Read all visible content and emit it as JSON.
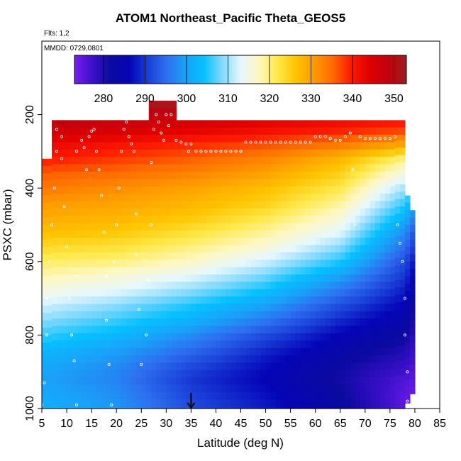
{
  "chart_data": {
    "type": "heatmap",
    "title": "ATOM1 Northeast_Pacific Theta_GEOS5",
    "flights_label": "Flts: 1,2",
    "dates_label": "MMDD: 0729,0801",
    "xlabel": "Latitude (deg N)",
    "ylabel": "PSXC (mbar)",
    "xlim": [
      5,
      85
    ],
    "ylim": [
      1000,
      0
    ],
    "x_ticks": [
      5,
      10,
      15,
      20,
      25,
      30,
      35,
      40,
      45,
      50,
      55,
      60,
      65,
      70,
      75,
      80,
      85
    ],
    "y_ticks": [
      200,
      400,
      600,
      800,
      1000
    ],
    "colorbar": {
      "range": [
        273,
        353
      ],
      "ticks": [
        280,
        290,
        300,
        310,
        320,
        330,
        340,
        350
      ],
      "colors": [
        "#7a1ef0",
        "#3a10c8",
        "#0a0aa0",
        "#0505b8",
        "#1a40d8",
        "#2d6ff0",
        "#1aa0f8",
        "#05c0ff",
        "#80d8ff",
        "#e6f7ff",
        "#fff7c0",
        "#ffe94a",
        "#ffc400",
        "#ff9a00",
        "#ff6a00",
        "#ff1a00",
        "#e00000",
        "#c00010",
        "#9c1e1e"
      ]
    },
    "arrow_latitude": 35,
    "curtain_columns": [
      {
        "lat_from": 5.0,
        "lat_to": 7.0,
        "p_top": 320,
        "p_bottom": 1000
      },
      {
        "lat_from": 7.0,
        "lat_to": 78.0,
        "p_top": 215,
        "p_bottom": 1000
      },
      {
        "lat_from": 26.5,
        "lat_to": 32.0,
        "p_top": 162,
        "p_bottom": 215
      },
      {
        "lat_from": 76.0,
        "lat_to": 78.0,
        "p_top": 270,
        "p_bottom": 1000
      },
      {
        "lat_from": 78.0,
        "lat_to": 79.0,
        "p_top": 420,
        "p_bottom": 985
      },
      {
        "lat_from": 79.0,
        "lat_to": 80.0,
        "p_top": 460,
        "p_bottom": 960
      }
    ],
    "theta_profile": {
      "pressure": [
        170,
        200,
        240,
        280,
        320,
        360,
        400,
        440,
        480,
        520,
        560,
        600,
        640,
        680,
        720,
        760,
        800,
        840,
        880,
        920,
        960,
        1000
      ],
      "lat_nodes": [
        5,
        20,
        35,
        50,
        65,
        78,
        80
      ],
      "theta": [
        [
          352,
          352,
          352,
          352,
          352,
          352,
          352
        ],
        [
          350,
          349,
          348,
          345,
          344,
          342,
          341
        ],
        [
          347,
          346,
          344,
          342,
          340,
          338,
          336
        ],
        [
          343,
          341,
          339,
          337,
          334,
          330,
          328
        ],
        [
          340,
          338,
          336,
          333,
          328,
          320,
          318
        ],
        [
          336,
          335,
          333,
          330,
          325,
          315,
          312
        ],
        [
          334,
          332,
          330,
          327,
          322,
          310,
          305
        ],
        [
          331,
          330,
          328,
          325,
          319,
          306,
          300
        ],
        [
          329,
          328,
          326,
          322,
          316,
          302,
          296
        ],
        [
          327,
          326,
          323,
          319,
          313,
          298,
          292
        ],
        [
          324,
          323,
          320,
          316,
          309,
          295,
          290
        ],
        [
          321,
          320,
          317,
          312,
          305,
          292,
          287
        ],
        [
          318,
          316,
          313,
          308,
          300,
          290,
          285
        ],
        [
          315,
          313,
          309,
          304,
          296,
          288,
          283
        ],
        [
          312,
          309,
          305,
          300,
          292,
          286,
          281
        ],
        [
          309,
          306,
          302,
          296,
          289,
          284,
          280
        ],
        [
          306,
          303,
          298,
          292,
          286,
          282,
          279
        ],
        [
          303,
          300,
          295,
          289,
          284,
          280,
          277
        ],
        [
          301,
          298,
          292,
          287,
          282,
          278,
          276
        ],
        [
          300,
          297,
          290,
          286,
          281,
          276,
          275
        ],
        [
          301,
          298,
          291,
          287,
          282,
          275,
          274
        ],
        [
          302,
          299,
          292,
          288,
          283,
          275,
          274
        ]
      ]
    },
    "flight_track": [
      [
        5,
        990
      ],
      [
        5.5,
        930
      ],
      [
        6,
        800
      ],
      [
        6,
        700
      ],
      [
        6.5,
        600
      ],
      [
        7,
        500
      ],
      [
        7.5,
        400
      ],
      [
        8,
        300
      ],
      [
        8,
        240
      ],
      [
        9,
        260
      ],
      [
        9,
        320
      ],
      [
        9.5,
        450
      ],
      [
        10,
        560
      ],
      [
        10.5,
        700
      ],
      [
        11,
        800
      ],
      [
        11.5,
        870
      ],
      [
        12,
        990
      ],
      [
        12,
        300
      ],
      [
        13,
        270
      ],
      [
        13.5,
        290
      ],
      [
        14,
        350
      ],
      [
        14.5,
        260
      ],
      [
        15,
        245
      ],
      [
        15.5,
        240
      ],
      [
        16,
        300
      ],
      [
        16.5,
        350
      ],
      [
        17,
        420
      ],
      [
        17.5,
        520
      ],
      [
        18,
        640
      ],
      [
        18,
        760
      ],
      [
        18.5,
        880
      ],
      [
        19,
        990
      ],
      [
        19.5,
        600
      ],
      [
        20,
        500
      ],
      [
        20.5,
        400
      ],
      [
        21,
        300
      ],
      [
        21.5,
        240
      ],
      [
        22,
        220
      ],
      [
        22.5,
        260
      ],
      [
        23,
        280
      ],
      [
        23.5,
        300
      ],
      [
        24,
        470
      ],
      [
        24,
        580
      ],
      [
        24.5,
        730
      ],
      [
        25,
        880
      ],
      [
        26,
        800
      ],
      [
        26.5,
        650
      ],
      [
        27,
        500
      ],
      [
        27,
        330
      ],
      [
        27.5,
        240
      ],
      [
        28,
        200
      ],
      [
        28.5,
        220
      ],
      [
        29,
        250
      ],
      [
        29.5,
        270
      ],
      [
        30,
        200
      ],
      [
        30.5,
        230
      ],
      [
        31,
        200
      ],
      [
        32,
        270
      ],
      [
        33,
        275
      ],
      [
        34,
        280
      ],
      [
        34.5,
        300
      ],
      [
        35,
        280
      ],
      [
        36,
        300
      ],
      [
        37,
        300
      ],
      [
        38,
        300
      ],
      [
        39,
        300
      ],
      [
        40,
        300
      ],
      [
        41,
        300
      ],
      [
        42,
        300
      ],
      [
        43,
        300
      ],
      [
        44,
        300
      ],
      [
        45,
        300
      ],
      [
        46,
        275
      ],
      [
        47,
        275
      ],
      [
        48,
        275
      ],
      [
        49,
        275
      ],
      [
        50,
        275
      ],
      [
        51,
        275
      ],
      [
        52,
        275
      ],
      [
        53,
        275
      ],
      [
        54,
        275
      ],
      [
        55,
        275
      ],
      [
        56,
        275
      ],
      [
        57,
        275
      ],
      [
        58,
        275
      ],
      [
        59,
        275
      ],
      [
        60,
        260
      ],
      [
        61,
        260
      ],
      [
        62,
        260
      ],
      [
        63,
        265
      ],
      [
        64,
        270
      ],
      [
        65,
        270
      ],
      [
        66,
        260
      ],
      [
        67,
        250
      ],
      [
        67.5,
        350
      ],
      [
        68,
        500
      ],
      [
        69,
        260
      ],
      [
        70,
        265
      ],
      [
        71,
        265
      ],
      [
        72,
        265
      ],
      [
        73,
        265
      ],
      [
        74,
        265
      ],
      [
        75,
        265
      ],
      [
        76,
        260
      ],
      [
        76.5,
        500
      ],
      [
        77,
        550
      ],
      [
        77.5,
        600
      ],
      [
        78,
        700
      ],
      [
        78,
        800
      ],
      [
        78.5,
        900
      ],
      [
        78.5,
        980
      ]
    ]
  }
}
